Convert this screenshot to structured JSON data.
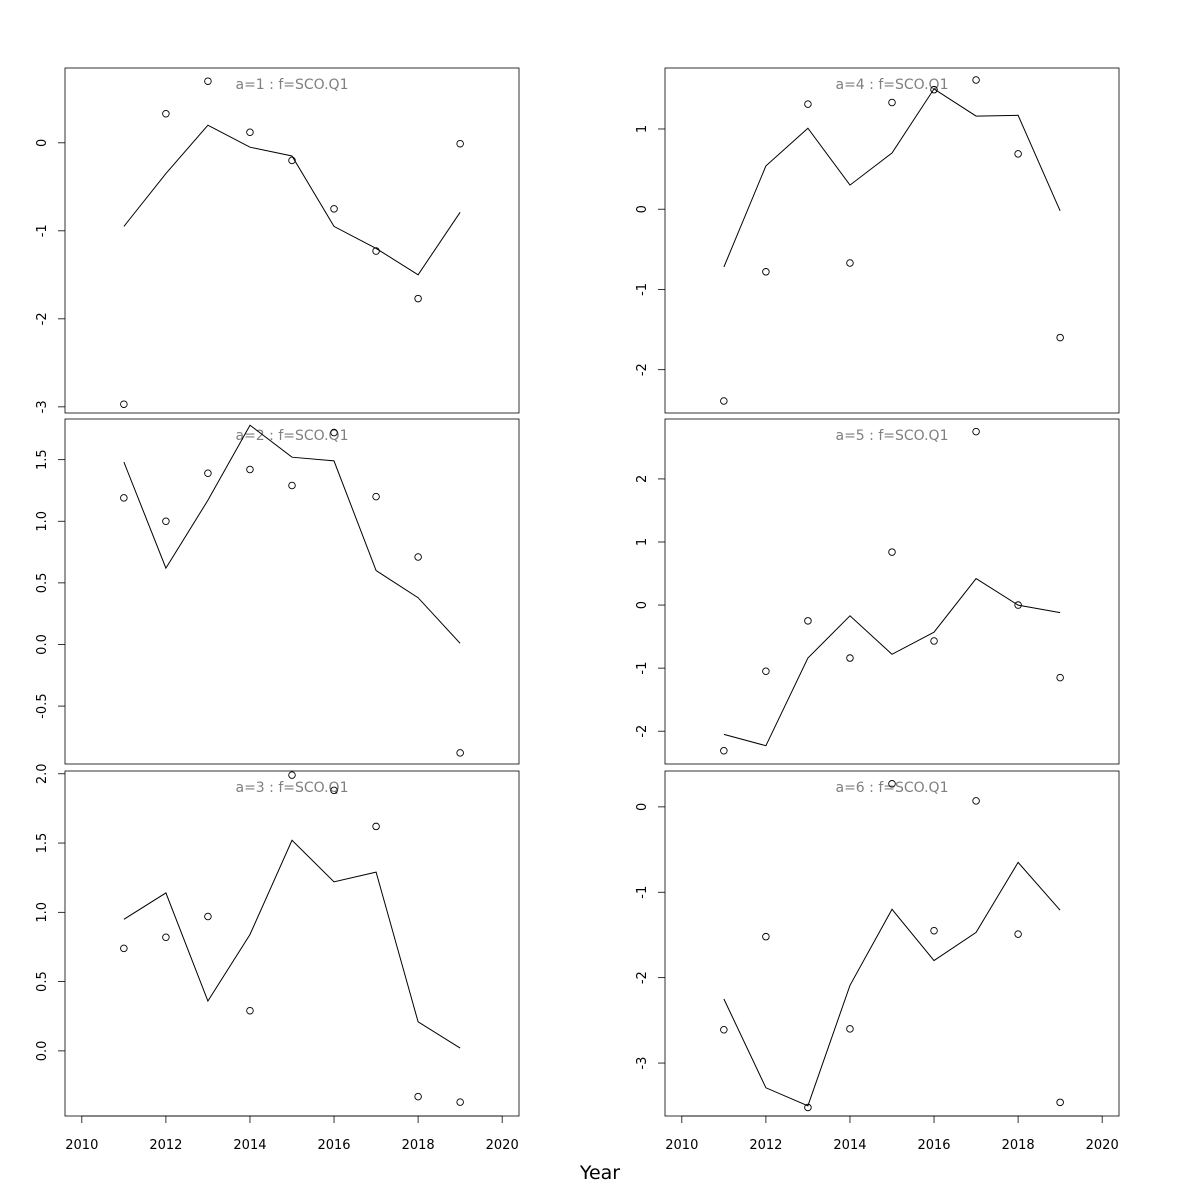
{
  "figure": {
    "xlabel": "Year"
  },
  "chart_data": [
    {
      "type": "line",
      "title": "a=1  :  f=SCO.Q1",
      "x": [
        2011,
        2012,
        2013,
        2014,
        2015,
        2016,
        2017,
        2018,
        2019
      ],
      "series": [
        {
          "kind": "observed-points",
          "values": [
            -2.97,
            0.33,
            0.7,
            0.12,
            -0.2,
            -0.75,
            -1.23,
            -1.77,
            -0.01
          ]
        },
        {
          "kind": "fitted-line",
          "values": [
            -0.95,
            -0.35,
            0.2,
            -0.05,
            -0.15,
            -0.95,
            -1.2,
            -1.5,
            -0.79
          ]
        }
      ],
      "yticks": [
        -3,
        -2,
        -1,
        0
      ],
      "ylim": [
        -3.07,
        0.85
      ],
      "xlim": [
        2009.6,
        2020.4
      ],
      "xticks": [
        2010,
        2012,
        2014,
        2016,
        2018,
        2020
      ],
      "show_x_axis": false,
      "grid": false
    },
    {
      "type": "line",
      "title": "a=2  :  f=SCO.Q1",
      "x": [
        2011,
        2012,
        2013,
        2014,
        2015,
        2016,
        2017,
        2018,
        2019
      ],
      "series": [
        {
          "kind": "observed-points",
          "values": [
            1.19,
            1.0,
            1.39,
            1.42,
            1.29,
            1.72,
            1.2,
            0.71,
            -0.88
          ]
        },
        {
          "kind": "fitted-line",
          "values": [
            1.48,
            0.62,
            1.17,
            1.78,
            1.52,
            1.49,
            0.6,
            0.38,
            0.01
          ]
        }
      ],
      "yticks": [
        -0.5,
        0.0,
        0.5,
        1.0,
        1.5
      ],
      "ytick_labels": [
        "-0.5",
        "0.0",
        "0.5",
        "1.0",
        "1.5"
      ],
      "ylim": [
        -0.97,
        1.83
      ],
      "xlim": [
        2009.6,
        2020.4
      ],
      "xticks": [
        2010,
        2012,
        2014,
        2016,
        2018,
        2020
      ],
      "show_x_axis": false,
      "grid": false
    },
    {
      "type": "line",
      "title": "a=3  :  f=SCO.Q1",
      "x": [
        2011,
        2012,
        2013,
        2014,
        2015,
        2016,
        2017,
        2018,
        2019
      ],
      "series": [
        {
          "kind": "observed-points",
          "values": [
            0.74,
            0.82,
            0.97,
            0.29,
            1.99,
            1.88,
            1.62,
            -0.33,
            -0.37
          ]
        },
        {
          "kind": "fitted-line",
          "values": [
            0.95,
            1.14,
            0.36,
            0.84,
            1.52,
            1.22,
            1.29,
            0.21,
            0.02
          ]
        }
      ],
      "yticks": [
        0.0,
        0.5,
        1.0,
        1.5,
        2.0
      ],
      "ytick_labels": [
        "0.0",
        "0.5",
        "1.0",
        "1.5",
        "2.0"
      ],
      "ylim": [
        -0.47,
        2.02
      ],
      "xlim": [
        2009.6,
        2020.4
      ],
      "xticks": [
        2010,
        2012,
        2014,
        2016,
        2018,
        2020
      ],
      "show_x_axis": true,
      "grid": false
    },
    {
      "type": "line",
      "title": "a=4  :  f=SCO.Q1",
      "x": [
        2011,
        2012,
        2013,
        2014,
        2015,
        2016,
        2017,
        2018,
        2019
      ],
      "series": [
        {
          "kind": "observed-points",
          "values": [
            -2.39,
            -0.78,
            1.31,
            -0.67,
            1.33,
            1.49,
            1.61,
            0.69,
            -1.6
          ]
        },
        {
          "kind": "fitted-line",
          "values": [
            -0.72,
            0.54,
            1.01,
            0.3,
            0.7,
            1.5,
            1.16,
            1.17,
            -0.02
          ]
        }
      ],
      "yticks": [
        -2,
        -1,
        0,
        1
      ],
      "ylim": [
        -2.54,
        1.76
      ],
      "xlim": [
        2009.6,
        2020.4
      ],
      "xticks": [
        2010,
        2012,
        2014,
        2016,
        2018,
        2020
      ],
      "show_x_axis": false,
      "grid": false
    },
    {
      "type": "line",
      "title": "a=5  :  f=SCO.Q1",
      "x": [
        2011,
        2012,
        2013,
        2014,
        2015,
        2016,
        2017,
        2018,
        2019
      ],
      "series": [
        {
          "kind": "observed-points",
          "values": [
            -2.31,
            -1.05,
            -0.25,
            -0.84,
            0.84,
            -0.57,
            2.75,
            0.0,
            -1.15
          ]
        },
        {
          "kind": "fitted-line",
          "values": [
            -2.05,
            -2.23,
            -0.84,
            -0.17,
            -0.78,
            -0.43,
            0.42,
            0.0,
            -0.12
          ]
        }
      ],
      "yticks": [
        -2,
        -1,
        0,
        1,
        2
      ],
      "ylim": [
        -2.52,
        2.95
      ],
      "xlim": [
        2009.6,
        2020.4
      ],
      "xticks": [
        2010,
        2012,
        2014,
        2016,
        2018,
        2020
      ],
      "show_x_axis": false,
      "grid": false
    },
    {
      "type": "line",
      "title": "a=6  :  f=SCO.Q1",
      "x": [
        2011,
        2012,
        2013,
        2014,
        2015,
        2016,
        2017,
        2018,
        2019
      ],
      "series": [
        {
          "kind": "observed-points",
          "values": [
            -2.61,
            -1.52,
            -3.52,
            -2.6,
            0.27,
            -1.45,
            0.07,
            -1.49,
            -3.46
          ]
        },
        {
          "kind": "fitted-line",
          "values": [
            -2.25,
            -3.29,
            -3.5,
            -2.09,
            -1.2,
            -1.8,
            -1.47,
            -0.65,
            -1.21
          ]
        }
      ],
      "yticks": [
        -3,
        -2,
        -1,
        0
      ],
      "ylim": [
        -3.62,
        0.42
      ],
      "xlim": [
        2009.6,
        2020.4
      ],
      "xticks": [
        2010,
        2012,
        2014,
        2016,
        2018,
        2020
      ],
      "show_x_axis": true,
      "grid": false
    }
  ]
}
